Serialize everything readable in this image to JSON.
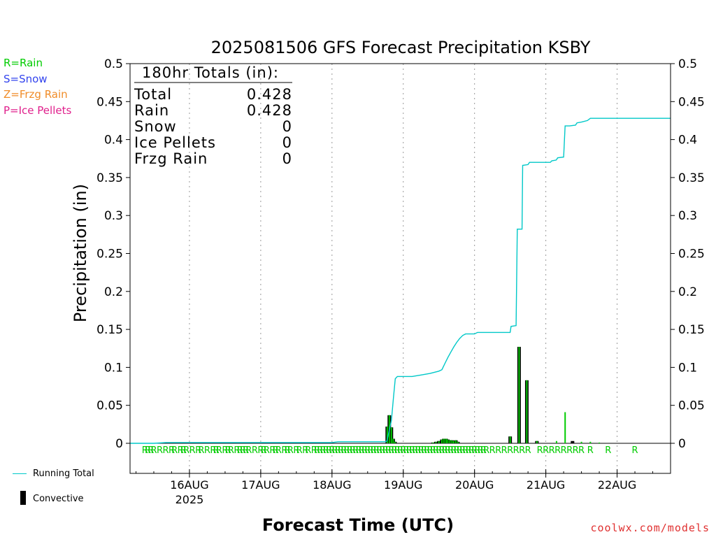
{
  "chart_data": {
    "type": "bar",
    "title": "2025081506 GFS Forecast Precipitation KSBY",
    "xlabel": "Forecast Time (UTC)",
    "ylabel": "Precipitation (in)",
    "ylim": [
      0,
      0.5
    ],
    "xlim_hours": [
      -2,
      180
    ],
    "y_ticks": [
      "0.5",
      "0.45",
      "0.4",
      "0.35",
      "0.3",
      "0.25",
      "0.2",
      "0.15",
      "0.1",
      "0.05",
      "0"
    ],
    "x_ticks": [
      {
        "label": "16AUG",
        "hour": 18,
        "sublabel": "2025"
      },
      {
        "label": "17AUG",
        "hour": 42
      },
      {
        "label": "18AUG",
        "hour": 66
      },
      {
        "label": "19AUG",
        "hour": 90
      },
      {
        "label": "20AUG",
        "hour": 114
      },
      {
        "label": "21AUG",
        "hour": 138
      },
      {
        "label": "22AUG",
        "hour": 162
      }
    ],
    "grid": "vertical dotted at day boundaries",
    "totals_box": {
      "heading": "180hr Totals (in):",
      "rows": [
        {
          "label": "Total",
          "value": "0.428"
        },
        {
          "label": "Rain",
          "value": "0.428"
        },
        {
          "label": "Snow",
          "value": "0"
        },
        {
          "label": "Ice Pellets",
          "value": "0"
        },
        {
          "label": "Frzg Rain",
          "value": "0"
        }
      ]
    },
    "type_legend": [
      {
        "text": "R=Rain",
        "color": "#00cc00"
      },
      {
        "text": "S=Snow",
        "color": "#3344ee"
      },
      {
        "text": "Z=Frzg Rain",
        "color": "#f08c28"
      },
      {
        "text": "P=Ice Pellets",
        "color": "#e0208c"
      }
    ],
    "series": [
      {
        "name": "Running Total",
        "type": "line",
        "color": "#00c8c8",
        "points": [
          [
            -2,
            0
          ],
          [
            6,
            0
          ],
          [
            10,
            0.001
          ],
          [
            60,
            0.001
          ],
          [
            66,
            0.001
          ],
          [
            68,
            0.002
          ],
          [
            84,
            0.002
          ],
          [
            84.5,
            0.003
          ],
          [
            86,
            0.03
          ],
          [
            86.7,
            0.06
          ],
          [
            87.3,
            0.085
          ],
          [
            88,
            0.088
          ],
          [
            90,
            0.088
          ],
          [
            93,
            0.088
          ],
          [
            96,
            0.09
          ],
          [
            99,
            0.092
          ],
          [
            102,
            0.095
          ],
          [
            103,
            0.097
          ],
          [
            104,
            0.105
          ],
          [
            105,
            0.113
          ],
          [
            106,
            0.12
          ],
          [
            107,
            0.127
          ],
          [
            108,
            0.133
          ],
          [
            109,
            0.138
          ],
          [
            110,
            0.142
          ],
          [
            111,
            0.144
          ],
          [
            114,
            0.144
          ],
          [
            115,
            0.146
          ],
          [
            120,
            0.146
          ],
          [
            126,
            0.146
          ],
          [
            126.3,
            0.154
          ],
          [
            128,
            0.155
          ],
          [
            128.4,
            0.282
          ],
          [
            130,
            0.282
          ],
          [
            130.2,
            0.366
          ],
          [
            132,
            0.367
          ],
          [
            132.5,
            0.37
          ],
          [
            138,
            0.37
          ],
          [
            139.5,
            0.37
          ],
          [
            140,
            0.372
          ],
          [
            141.5,
            0.373
          ],
          [
            142,
            0.376
          ],
          [
            144,
            0.377
          ],
          [
            144.5,
            0.418
          ],
          [
            146,
            0.418
          ],
          [
            148,
            0.419
          ],
          [
            148.5,
            0.422
          ],
          [
            150,
            0.423
          ],
          [
            152,
            0.425
          ],
          [
            153,
            0.428
          ],
          [
            180,
            0.428
          ]
        ]
      },
      {
        "name": "Convective",
        "type": "bar",
        "color": "#000000",
        "bars": [
          [
            84.6,
            0.022
          ],
          [
            85.3,
            0.037
          ],
          [
            86.0,
            0.021
          ],
          [
            86.6,
            0.006
          ],
          [
            87.2,
            0.002
          ],
          [
            100,
            0.001
          ],
          [
            101,
            0.002
          ],
          [
            102,
            0.003
          ],
          [
            103,
            0.005
          ],
          [
            103.7,
            0.006
          ],
          [
            104.4,
            0.006
          ],
          [
            105,
            0.005
          ],
          [
            105.7,
            0.004
          ],
          [
            106.4,
            0.004
          ],
          [
            107,
            0.003
          ],
          [
            107.7,
            0.004
          ],
          [
            108.4,
            0.002
          ],
          [
            126,
            0.009
          ],
          [
            129,
            0.127
          ],
          [
            131.6,
            0.083
          ],
          [
            135,
            0.003
          ],
          [
            147,
            0.003
          ]
        ]
      },
      {
        "name": "Rain",
        "type": "bar",
        "color": "#00cc00",
        "bars": [
          [
            84.6,
            0.022
          ],
          [
            85.3,
            0.037
          ],
          [
            86.0,
            0.021
          ],
          [
            86.6,
            0.006
          ],
          [
            87.2,
            0.002
          ],
          [
            100,
            0.001
          ],
          [
            101,
            0.002
          ],
          [
            102,
            0.003
          ],
          [
            103,
            0.005
          ],
          [
            103.7,
            0.006
          ],
          [
            104.4,
            0.006
          ],
          [
            105,
            0.005
          ],
          [
            105.7,
            0.004
          ],
          [
            106.4,
            0.004
          ],
          [
            107,
            0.003
          ],
          [
            107.7,
            0.004
          ],
          [
            108.4,
            0.002
          ],
          [
            126,
            0.009
          ],
          [
            129,
            0.127
          ],
          [
            131.6,
            0.083
          ],
          [
            135,
            0.003
          ],
          [
            141.6,
            0.003
          ],
          [
            144.5,
            0.041
          ],
          [
            150,
            0.002
          ],
          [
            153,
            0.002
          ],
          [
            156,
            0.001
          ]
        ]
      }
    ],
    "ptype_row": {
      "label": "R",
      "color": "#00cc00",
      "hours": [
        3,
        4,
        5,
        6,
        8,
        10,
        12,
        13,
        15,
        16,
        17,
        19,
        21,
        22,
        24,
        26,
        27,
        28,
        30,
        31,
        32,
        34,
        35,
        36,
        37,
        38,
        40,
        42,
        43,
        44,
        46,
        47,
        48,
        50,
        51,
        52,
        54,
        55,
        57,
        58,
        60,
        61,
        62,
        63,
        64,
        65,
        66,
        67,
        68,
        69,
        70,
        71,
        72,
        73,
        74,
        75,
        76,
        77,
        78,
        79,
        80,
        81,
        82,
        83,
        84,
        85,
        86,
        87,
        88,
        89,
        90,
        91,
        92,
        93,
        94,
        95,
        96,
        97,
        98,
        99,
        100,
        101,
        102,
        103,
        104,
        105,
        106,
        107,
        108,
        109,
        110,
        111,
        112,
        113,
        114,
        115,
        116,
        117,
        118,
        120,
        122,
        124,
        126,
        128,
        130,
        132,
        136,
        138,
        140,
        142,
        144,
        146,
        148,
        150,
        153,
        159,
        168
      ]
    },
    "bottom_legend": [
      {
        "text": "Running Total",
        "color": "#00c8c8"
      },
      {
        "text": "Convective",
        "color": "#000000"
      }
    ],
    "credit": "coolwx.com/models"
  }
}
